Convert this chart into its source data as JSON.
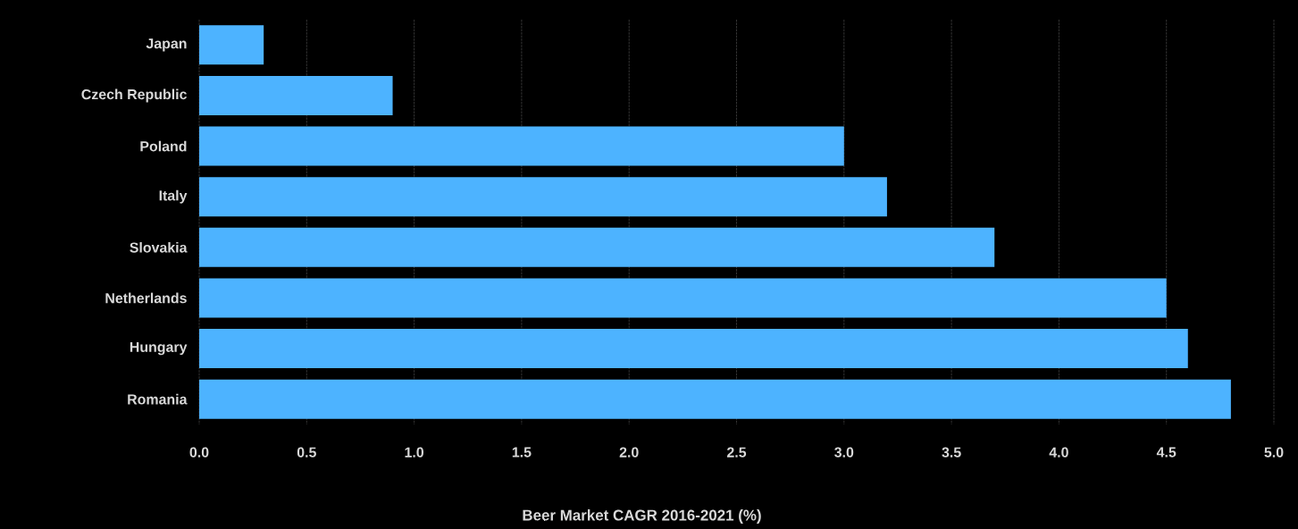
{
  "chart_data": {
    "type": "bar",
    "orientation": "horizontal",
    "xlabel": "Beer Market CAGR 2016-2021 (%)",
    "categories": [
      "Japan",
      "Czech Republic",
      "Poland",
      "Italy",
      "Slovakia",
      "Netherlands",
      "Hungary",
      "Romania"
    ],
    "values": [
      0.3,
      0.9,
      3.0,
      3.2,
      3.7,
      4.5,
      4.6,
      4.8
    ],
    "color": "#4db3ff",
    "xlim": [
      0,
      5
    ],
    "xticks": [
      {
        "value": 0,
        "label": "0.0"
      },
      {
        "value": 0.5,
        "label": "0.5"
      },
      {
        "value": 1,
        "label": "1.0"
      },
      {
        "value": 1.5,
        "label": "1.5"
      },
      {
        "value": 2,
        "label": "2.0"
      },
      {
        "value": 2.5,
        "label": "2.5"
      },
      {
        "value": 3,
        "label": "3.0"
      },
      {
        "value": 3.5,
        "label": "3.5"
      },
      {
        "value": 4,
        "label": "4.0"
      },
      {
        "value": 4.5,
        "label": "4.5"
      },
      {
        "value": 5,
        "label": "5.0"
      }
    ],
    "grid": "x"
  }
}
